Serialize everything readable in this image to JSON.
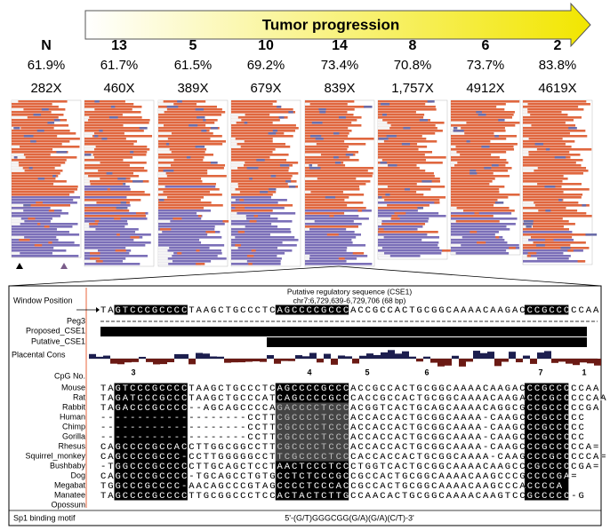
{
  "header": {
    "title": "Tumor progression"
  },
  "samples": [
    {
      "label": "N",
      "percent": "61.9%",
      "coverage": "282X"
    },
    {
      "label": "13",
      "percent": "61.7%",
      "coverage": "460X"
    },
    {
      "label": "5",
      "percent": "61.5%",
      "coverage": "389X"
    },
    {
      "label": "10",
      "percent": "69.2%",
      "coverage": "679X"
    },
    {
      "label": "14",
      "percent": "73.4%",
      "coverage": "839X"
    },
    {
      "label": "8",
      "percent": "70.8%",
      "coverage": "1,757X"
    },
    {
      "label": "6",
      "percent": "73.7%",
      "coverage": "4912X"
    },
    {
      "label": "2",
      "percent": "83.8%",
      "coverage": "4619X"
    }
  ],
  "browser": {
    "window_position": "Window Position",
    "region_title": "Putative regulatory sequence (CSE1)",
    "coordinates": "chr7:6,729,639-6,729,706 (68 bp)",
    "reference": "TAGTCCCGCCCCTAAGCTGCCCTCAGCCCCGCCCACCGCCACTGCGGCAAAACAAGACCCGCCCCCAA",
    "tracks": [
      "Peg3",
      "Proposed_CSE1",
      "Putative_CSE1",
      "Placental Cons"
    ],
    "cpg_label": "CpG No.",
    "cpg_numbers": [
      "3",
      "4",
      "5",
      "6",
      "7",
      "1"
    ],
    "species": [
      {
        "name": "Mouse",
        "sequence": "TAGTCCCGCCCCTAAGCTGCCCTCAGCCCCGCCCACCGCCACTGCGGCAAAACAAGACCCGCCCCCAA"
      },
      {
        "name": "Rat",
        "sequence": "TAGATCCCGCCCTAAGCTGCCCATCAGCCCCGCCCACCGCCACTGCGGCAAAACAAGACCCGCCCCCAA"
      },
      {
        "name": "Rabbit",
        "sequence": "TAGACCCGCCCC--AGCAGCCCCAGACCCCTCCCACGGTCACTGCAGCAAAACAGGCGCCGCCCCCGA"
      },
      {
        "name": "Human",
        "sequence": "--------------------CCTTCGCCCCTCCCACCACCACTGCGGCAAAA-CAAGCCCGCCCCC"
      },
      {
        "name": "Chimp",
        "sequence": "--------------------CCTTCGCCCCTCCCACCACCACTGCGGCAAAA-CAAGCCCGCCCCC"
      },
      {
        "name": "Gorilla",
        "sequence": "--------------------CCTTCGCCCCTCCCACCACCACTGCGGCAAAA-CAAGCCCGCCCCC"
      },
      {
        "name": "Rhesus",
        "sequence": "CAGCCCCGCCACCTTGGCGGCCTTCGCCCCTCCCACCACCACTGCGGCAAAA-CAAGCCCGCCCCCA="
      },
      {
        "name": "Squirrel_monkey",
        "sequence": "CAGCCCCGCCC-CCTTGGGGGCCTTCGCCCCTCCCACCACCACTGCGGCAAAA-CAAGCCCGCCCCCA="
      },
      {
        "name": "Bushbaby",
        "sequence": "-TGGCCCGCCCCCTTGCAGCTCCTAACTCCCTCCCTGGTCACTGCGGCAAAACAAGCCCGCCCCCGA="
      },
      {
        "name": "Dog",
        "sequence": "CAGCCCCGCCCC-TGCAGCCTGTGCCTCTCCCGCCGCCACTGCGGCAAAACAAGCCCGCCCCGA="
      },
      {
        "name": "Megabat",
        "sequence": "TGGCCCGCCCC-AACAGCCCGTAGCCCCTCCCACCGCCACTGCGGCAAAACAAGCCCACCCCA"
      },
      {
        "name": "Manatee",
        "sequence": "TAGCCCCGCCCCTTGCGGCCCTCCACTACTCTTGCCAACACTGCGGCAAAACAAGTCCGCCCCC-G"
      },
      {
        "name": "Opossum"
      }
    ],
    "motif_label": "Sp1 binding motif",
    "motif": "5'-(G/T)GGGCGG(G/A)(G/A)(C/T)-3'"
  }
}
